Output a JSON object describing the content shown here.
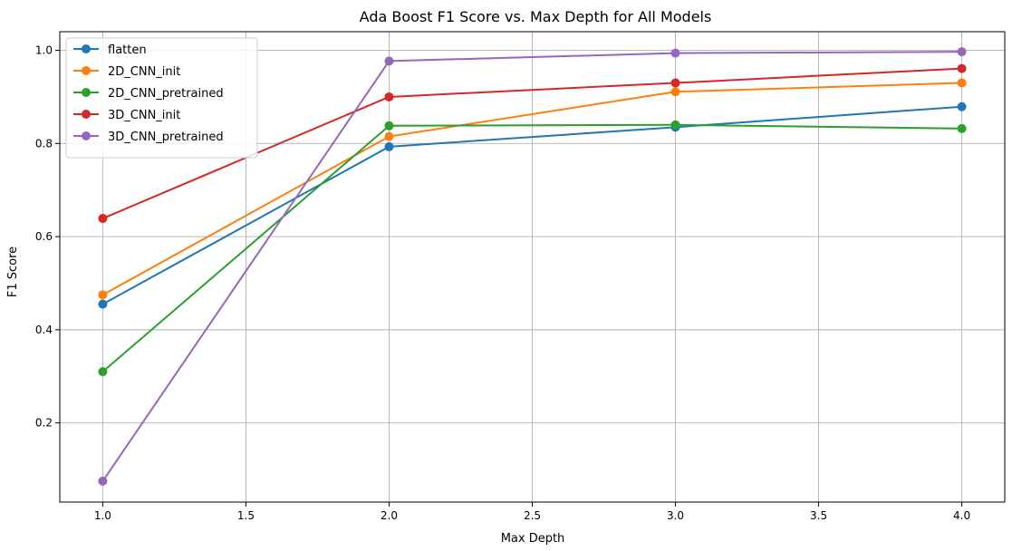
{
  "chart_data": {
    "type": "line",
    "title": "Ada Boost F1 Score vs. Max Depth for All Models",
    "xlabel": "Max Depth",
    "ylabel": "F1 Score",
    "xlim": [
      0.85,
      4.15
    ],
    "ylim": [
      0.03,
      1.04
    ],
    "xticks": [
      1.0,
      1.5,
      2.0,
      2.5,
      3.0,
      3.5,
      4.0
    ],
    "xtick_labels": [
      "1.0",
      "1.5",
      "2.0",
      "2.5",
      "3.0",
      "3.5",
      "4.0"
    ],
    "yticks": [
      0.2,
      0.4,
      0.6,
      0.8,
      1.0
    ],
    "ytick_labels": [
      "0.2",
      "0.4",
      "0.6",
      "0.8",
      "1.0"
    ],
    "grid": true,
    "legend_position": "top-left",
    "x": [
      1,
      2,
      3,
      4
    ],
    "series": [
      {
        "name": "flatten",
        "color": "#1f77b4",
        "values": [
          0.455,
          0.793,
          0.835,
          0.879
        ]
      },
      {
        "name": "2D_CNN_init",
        "color": "#ff7f0e",
        "values": [
          0.475,
          0.815,
          0.911,
          0.93
        ]
      },
      {
        "name": "2D_CNN_pretrained",
        "color": "#2ca02c",
        "values": [
          0.31,
          0.838,
          0.84,
          0.832
        ]
      },
      {
        "name": "3D_CNN_init",
        "color": "#d62728",
        "values": [
          0.639,
          0.9,
          0.93,
          0.961
        ]
      },
      {
        "name": "3D_CNN_pretrained",
        "color": "#9467bd",
        "values": [
          0.075,
          0.977,
          0.994,
          0.997
        ]
      }
    ]
  }
}
